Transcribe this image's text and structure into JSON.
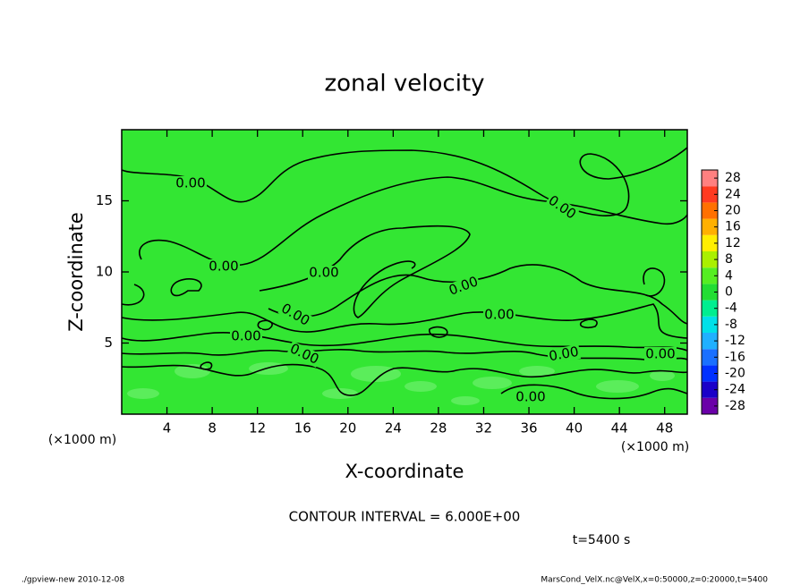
{
  "chart_data": {
    "type": "contour",
    "title": "zonal velocity",
    "xlabel": "X-coordinate",
    "ylabel": "Z-coordinate",
    "x_unit": "(×1000 m)",
    "y_unit": "(×1000 m)",
    "xlim": [
      0,
      50
    ],
    "xticks": [
      4,
      8,
      12,
      16,
      20,
      24,
      28,
      32,
      36,
      40,
      44,
      48
    ],
    "ylim": [
      0,
      20
    ],
    "yticks": [
      5,
      10,
      15
    ],
    "contour_levels": [
      {
        "value": 0,
        "label": "0.00"
      }
    ],
    "contour_interval": "CONTOUR INTERVAL = 6.000E+00",
    "time_label": "t=5400 s",
    "colorbar": {
      "lim": [
        -30,
        30
      ],
      "ticks": [
        -28,
        -24,
        -20,
        -16,
        -12,
        -8,
        -4,
        0,
        4,
        8,
        12,
        16,
        20,
        24,
        28
      ],
      "colors": [
        "#6a00a8",
        "#1a00c8",
        "#0030ff",
        "#1a70ff",
        "#20b0ff",
        "#00e0e8",
        "#00ee90",
        "#22dd33",
        "#55ee22",
        "#aaf000",
        "#ffee00",
        "#ffb000",
        "#ff7000",
        "#ff3a20",
        "#ff8080"
      ]
    },
    "field_color": "#33e633",
    "footer_left": "./gpview-new   2010-12-08",
    "footer_right": "MarsCond_VelX.nc@VelX,x=0:50000,z=0:20000,t=5400"
  }
}
